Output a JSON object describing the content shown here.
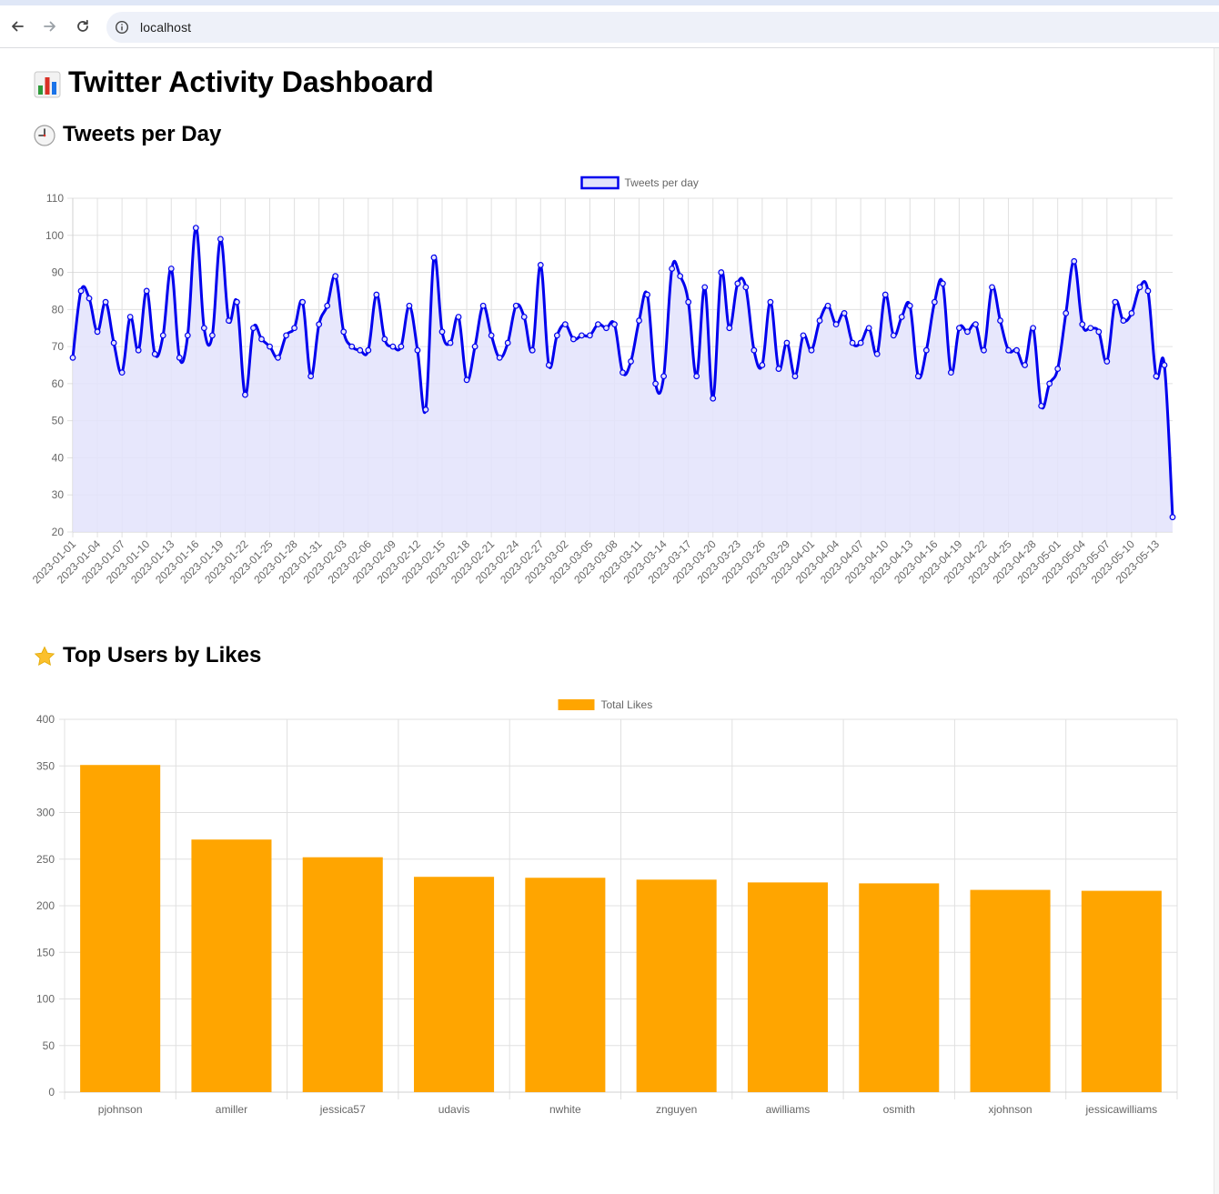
{
  "browser": {
    "url": "localhost"
  },
  "page": {
    "title": "Twitter Activity Dashboard",
    "title_icon": "bar-chart-emoji",
    "sections": [
      {
        "heading": "Tweets per Day",
        "icon": "clock-emoji"
      },
      {
        "heading": "Top Users by Likes",
        "icon": "star-emoji"
      }
    ]
  },
  "colors": {
    "line": "#0000ee",
    "line_fill": "#e3e3fb",
    "bar": "#ffa500",
    "grid": "#e0e0e0",
    "tick_text": "#666666"
  },
  "chart_data": [
    {
      "type": "line",
      "legend": [
        "Tweets per day"
      ],
      "legend_position": "top-center",
      "grid": true,
      "fill": true,
      "xlabel": "",
      "ylabel": "",
      "ylim": [
        20,
        110
      ],
      "yticks": [
        20,
        30,
        40,
        50,
        60,
        70,
        80,
        90,
        100,
        110
      ],
      "x_start": "2023-01-01",
      "x_tick_labels": [
        "2023-01-01",
        "2023-01-04",
        "2023-01-07",
        "2023-01-10",
        "2023-01-13",
        "2023-01-16",
        "2023-01-19",
        "2023-01-22",
        "2023-01-25",
        "2023-01-28",
        "2023-01-31",
        "2023-02-03",
        "2023-02-06",
        "2023-02-09",
        "2023-02-12",
        "2023-02-15",
        "2023-02-18",
        "2023-02-21",
        "2023-02-24",
        "2023-02-27",
        "2023-03-02",
        "2023-03-05",
        "2023-03-08",
        "2023-03-11",
        "2023-03-14",
        "2023-03-17",
        "2023-03-20",
        "2023-03-23",
        "2023-03-26",
        "2023-03-29",
        "2023-04-01",
        "2023-04-04",
        "2023-04-07",
        "2023-04-10",
        "2023-04-13",
        "2023-04-16",
        "2023-04-19",
        "2023-04-22",
        "2023-04-25",
        "2023-04-28",
        "2023-05-01",
        "2023-05-04",
        "2023-05-07",
        "2023-05-10",
        "2023-05-13"
      ],
      "series": [
        {
          "name": "Tweets per day",
          "values": [
            67,
            85,
            83,
            74,
            82,
            71,
            63,
            78,
            69,
            85,
            68,
            73,
            91,
            67,
            73,
            102,
            75,
            73,
            99,
            77,
            82,
            57,
            75,
            72,
            70,
            67,
            73,
            75,
            82,
            62,
            76,
            81,
            89,
            74,
            70,
            69,
            69,
            84,
            72,
            70,
            70,
            81,
            69,
            53,
            94,
            74,
            71,
            78,
            61,
            70,
            81,
            73,
            67,
            71,
            81,
            78,
            69,
            92,
            65,
            73,
            76,
            72,
            73,
            73,
            76,
            75,
            76,
            63,
            66,
            77,
            84,
            60,
            62,
            91,
            89,
            82,
            62,
            86,
            56,
            90,
            75,
            87,
            86,
            69,
            65,
            82,
            64,
            71,
            62,
            73,
            69,
            77,
            81,
            76,
            79,
            71,
            71,
            75,
            68,
            84,
            73,
            78,
            81,
            62,
            69,
            82,
            87,
            63,
            75,
            74,
            76,
            69,
            86,
            77,
            69,
            69,
            65,
            75,
            54,
            60,
            64,
            79,
            93,
            76,
            75,
            74,
            66,
            82,
            77,
            79,
            86,
            85,
            62,
            65,
            24
          ]
        }
      ]
    },
    {
      "type": "bar",
      "legend": [
        "Total Likes"
      ],
      "legend_position": "top-center",
      "grid": true,
      "xlabel": "",
      "ylabel": "",
      "ylim": [
        0,
        400
      ],
      "yticks": [
        0,
        50,
        100,
        150,
        200,
        250,
        300,
        350,
        400
      ],
      "categories": [
        "pjohnson",
        "amiller",
        "jessica57",
        "udavis",
        "nwhite",
        "znguyen",
        "awilliams",
        "osmith",
        "xjohnson",
        "jessicawilliams"
      ],
      "series": [
        {
          "name": "Total Likes",
          "values": [
            351,
            271,
            252,
            231,
            230,
            228,
            225,
            224,
            217,
            216
          ]
        }
      ]
    }
  ]
}
